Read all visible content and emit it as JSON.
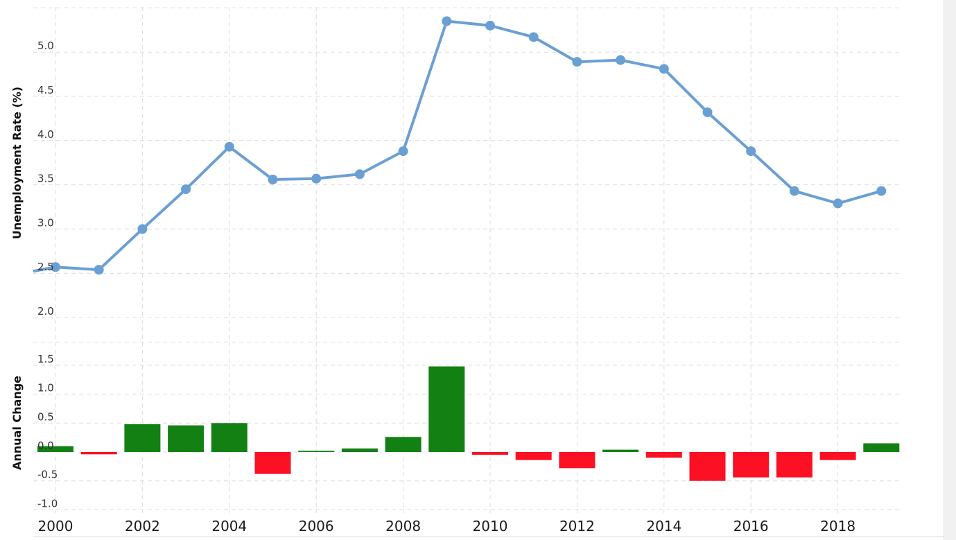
{
  "chart_data": [
    {
      "type": "line",
      "ylabel": "Unemployment Rate (%)",
      "x": [
        2000,
        2001,
        2002,
        2003,
        2004,
        2005,
        2006,
        2007,
        2008,
        2009,
        2010,
        2011,
        2012,
        2013,
        2014,
        2015,
        2016,
        2017,
        2018,
        2019
      ],
      "values": [
        2.57,
        2.54,
        3.0,
        3.45,
        3.93,
        3.56,
        3.57,
        3.62,
        3.88,
        5.35,
        5.3,
        5.17,
        4.89,
        4.91,
        4.81,
        4.32,
        3.88,
        3.43,
        3.29,
        3.43
      ],
      "yticks": [
        "2.0",
        "2.5",
        "3.0",
        "3.5",
        "4.0",
        "4.5",
        "5.0"
      ],
      "ylim": [
        2.0,
        5.5
      ],
      "color": "#6a9fd4",
      "grid": true
    },
    {
      "type": "bar",
      "ylabel": "Annual Change",
      "x": [
        2000,
        2001,
        2002,
        2003,
        2004,
        2005,
        2006,
        2007,
        2008,
        2009,
        2010,
        2011,
        2012,
        2013,
        2014,
        2015,
        2016,
        2017,
        2018,
        2019
      ],
      "values": [
        0.1,
        -0.04,
        0.48,
        0.46,
        0.5,
        -0.38,
        0.02,
        0.06,
        0.26,
        1.48,
        -0.05,
        -0.14,
        -0.28,
        0.04,
        -0.1,
        -0.5,
        -0.44,
        -0.44,
        -0.14,
        0.15
      ],
      "yticks": [
        "-1.0",
        "-0.5",
        "0.0",
        "0.5",
        "1.0",
        "1.5"
      ],
      "ylim": [
        -1.0,
        1.9
      ],
      "positive_color": "#138013",
      "negative_color": "#fb1024",
      "grid": true
    }
  ],
  "x_tick_labels": [
    "2000",
    "2002",
    "2004",
    "2006",
    "2008",
    "2010",
    "2012",
    "2014",
    "2016",
    "2018"
  ]
}
